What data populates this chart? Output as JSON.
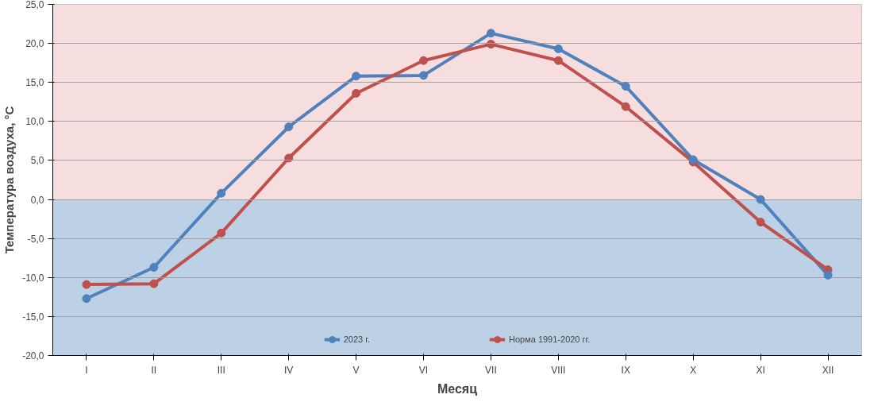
{
  "chart_data": {
    "type": "line",
    "xlabel": "Месяц",
    "ylabel": "Температура воздуха, °С",
    "categories": [
      "I",
      "II",
      "III",
      "IV",
      "V",
      "VI",
      "VII",
      "VIII",
      "IX",
      "X",
      "XI",
      "XII"
    ],
    "series": [
      {
        "name": "2023 г.",
        "color": "#4f81bd",
        "values": [
          -12.7,
          -8.7,
          0.8,
          9.3,
          15.8,
          15.9,
          21.3,
          19.3,
          14.5,
          5.1,
          0.0,
          -9.7
        ]
      },
      {
        "name": "Норма 1991-2020 гг.",
        "color": "#c0504d",
        "values": [
          -10.9,
          -10.8,
          -4.3,
          5.3,
          13.6,
          17.8,
          19.9,
          17.8,
          11.9,
          4.8,
          -2.9,
          -9.0
        ]
      }
    ],
    "ylim": [
      -20,
      25
    ],
    "yticks": [
      {
        "value": -20,
        "label": "-20,0"
      },
      {
        "value": -15,
        "label": "-15,0"
      },
      {
        "value": -10,
        "label": "-10,0"
      },
      {
        "value": -5,
        "label": "-5,0"
      },
      {
        "value": 0,
        "label": "0,0"
      },
      {
        "value": 5,
        "label": "5,0"
      },
      {
        "value": 10,
        "label": "10,0"
      },
      {
        "value": 15,
        "label": "15,0"
      },
      {
        "value": 20,
        "label": "20,0"
      },
      {
        "value": 25,
        "label": "25,0"
      }
    ],
    "bands": [
      {
        "axis": "y",
        "from": 0,
        "to": 25,
        "color": "#f6dede"
      },
      {
        "axis": "y",
        "from": -20,
        "to": 0,
        "color": "#bcd0e6"
      }
    ],
    "grid": "y",
    "legend": "bottom",
    "marker": "circle",
    "line_style": "solid"
  }
}
